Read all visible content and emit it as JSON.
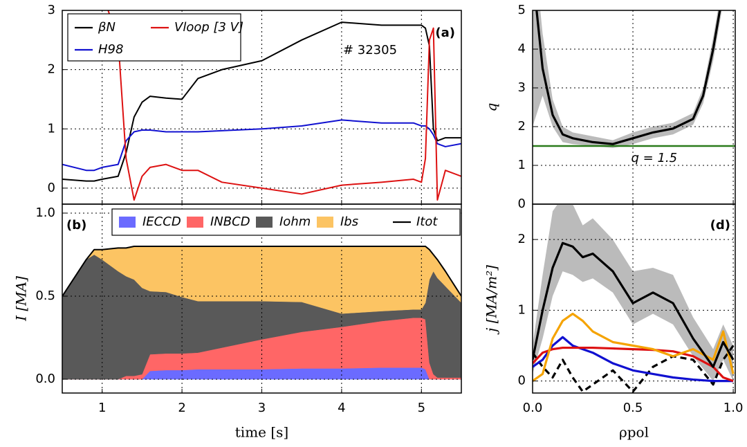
{
  "chart_data": [
    {
      "type": "line",
      "annotations": [
        "# 32305",
        "(a)"
      ],
      "x": [
        0.5,
        0.8,
        0.9,
        1.0,
        1.2,
        1.3,
        1.4,
        1.5,
        1.6,
        1.8,
        2.0,
        2.2,
        2.5,
        3.0,
        3.5,
        4.0,
        4.5,
        4.9,
        5.0,
        5.05,
        5.1,
        5.15,
        5.2,
        5.3,
        5.5
      ],
      "xlim": [
        0.5,
        5.5
      ],
      "ylim": [
        -0.27,
        3
      ],
      "xticks": [
        1,
        2,
        3,
        4,
        5
      ],
      "yticks": [
        0,
        1,
        2,
        3
      ],
      "grid": true,
      "show_xtick_labels": false,
      "series": [
        {
          "name": "βN",
          "color": "#000000",
          "values": [
            0.15,
            0.12,
            0.12,
            0.15,
            0.2,
            0.6,
            1.2,
            1.45,
            1.55,
            1.52,
            1.5,
            1.85,
            2.0,
            2.15,
            2.5,
            2.8,
            2.75,
            2.75,
            2.75,
            2.7,
            2.4,
            1.0,
            0.8,
            0.85,
            0.85
          ]
        },
        {
          "name": "H98",
          "color": "#1010d0",
          "values": [
            0.4,
            0.3,
            0.3,
            0.35,
            0.4,
            0.8,
            0.95,
            0.98,
            0.98,
            0.95,
            0.95,
            0.95,
            0.97,
            1.0,
            1.05,
            1.15,
            1.1,
            1.1,
            1.05,
            1.05,
            1.0,
            0.9,
            0.75,
            0.7,
            0.75
          ]
        },
        {
          "name": "Vloop [3 V]",
          "color": "#dd1111",
          "values": [
            3.5,
            3.5,
            3.4,
            3.3,
            2.5,
            0.5,
            -0.2,
            0.2,
            0.35,
            0.4,
            0.3,
            0.3,
            0.1,
            0.0,
            -0.1,
            0.05,
            0.1,
            0.15,
            0.1,
            0.5,
            2.5,
            2.7,
            -0.2,
            0.3,
            0.2
          ]
        }
      ]
    },
    {
      "type": "area",
      "annotations": [
        "(b)"
      ],
      "xlabel": "time [s]",
      "ylabel": "I [MA]",
      "x": [
        0.5,
        0.8,
        0.9,
        1.0,
        1.2,
        1.3,
        1.4,
        1.5,
        1.6,
        1.8,
        2.0,
        2.2,
        2.5,
        3.0,
        3.5,
        4.0,
        4.5,
        4.9,
        5.0,
        5.05,
        5.1,
        5.15,
        5.2,
        5.3,
        5.5
      ],
      "xlim": [
        0.5,
        5.5
      ],
      "ylim": [
        -0.083,
        1.054
      ],
      "xticks": [
        1,
        2,
        3,
        4,
        5
      ],
      "yticks": [
        {
          "value": 0,
          "label": "0.0"
        },
        {
          "value": 0.5,
          "label": "0.5"
        },
        {
          "value": 1,
          "label": "1.0"
        }
      ],
      "grid": true,
      "show_xtick_labels": true,
      "series": [
        {
          "name": "IECCD",
          "color": "#6b6bff",
          "stacked": true,
          "values": [
            0,
            0,
            0,
            0,
            0,
            0,
            0,
            0,
            0.05,
            0.055,
            0.055,
            0.06,
            0.06,
            0.06,
            0.065,
            0.065,
            0.07,
            0.07,
            0.07,
            0.06,
            0,
            0,
            0,
            0,
            0
          ]
        },
        {
          "name": "INBCD",
          "color": "#ff6666",
          "stacked": true,
          "values": [
            0,
            0,
            0,
            0,
            0,
            0.02,
            0.02,
            0.03,
            0.1,
            0.1,
            0.1,
            0.1,
            0.13,
            0.18,
            0.22,
            0.25,
            0.28,
            0.3,
            0.3,
            0.3,
            0.1,
            0.03,
            0.01,
            0.01,
            0.01
          ]
        },
        {
          "name": "Iohm",
          "color": "#595959",
          "stacked": true,
          "values": [
            0.5,
            0.72,
            0.75,
            0.72,
            0.65,
            0.6,
            0.58,
            0.52,
            0.38,
            0.37,
            0.34,
            0.31,
            0.28,
            0.23,
            0.18,
            0.08,
            0.06,
            0.05,
            0.05,
            0.1,
            0.5,
            0.62,
            0.6,
            0.55,
            0.45
          ]
        },
        {
          "name": "Ibs",
          "color": "#fcc463",
          "stacked": true,
          "values": [
            0,
            0,
            0.03,
            0.06,
            0.14,
            0.17,
            0.2,
            0.25,
            0.27,
            0.275,
            0.305,
            0.33,
            0.33,
            0.33,
            0.335,
            0.405,
            0.39,
            0.38,
            0.38,
            0.34,
            0.18,
            0.1,
            0.11,
            0.09,
            0.04
          ]
        },
        {
          "name": "Itot",
          "color": "#000000",
          "values": [
            0.5,
            0.72,
            0.78,
            0.78,
            0.79,
            0.79,
            0.8,
            0.8,
            0.8,
            0.8,
            0.8,
            0.8,
            0.8,
            0.8,
            0.8,
            0.8,
            0.8,
            0.8,
            0.8,
            0.8,
            0.78,
            0.75,
            0.72,
            0.65,
            0.5
          ]
        }
      ]
    },
    {
      "type": "line",
      "ylabel": "q",
      "x": [
        0,
        0.05,
        0.1,
        0.15,
        0.2,
        0.3,
        0.4,
        0.5,
        0.6,
        0.7,
        0.8,
        0.85,
        0.9,
        0.95,
        1.0
      ],
      "xlim": [
        0,
        1.01
      ],
      "ylim": [
        0,
        5
      ],
      "xticks": [
        0,
        0.5,
        1
      ],
      "yticks": [
        0,
        1,
        2,
        3,
        4,
        5
      ],
      "grid": true,
      "show_xtick_labels": false,
      "bands": [
        {
          "color": "#bbbbbb",
          "lower": [
            2.0,
            2.8,
            2.0,
            1.6,
            1.55,
            1.5,
            1.45,
            1.55,
            1.7,
            1.8,
            2.05,
            2.6,
            3.7,
            5.2,
            6.5
          ],
          "upper": [
            7,
            4.4,
            2.7,
            2.0,
            1.85,
            1.75,
            1.65,
            1.85,
            2.0,
            2.1,
            2.35,
            3.0,
            4.3,
            5.8,
            7.5
          ]
        }
      ],
      "hline": {
        "value": 1.5,
        "label": "q = 1.5",
        "color": "#2a7a1a"
      },
      "series": [
        {
          "color": "#000000",
          "values": [
            6,
            3.5,
            2.3,
            1.8,
            1.7,
            1.6,
            1.55,
            1.7,
            1.85,
            1.95,
            2.2,
            2.8,
            4,
            5.5,
            7
          ]
        }
      ]
    },
    {
      "type": "line",
      "annotations": [
        "(d)"
      ],
      "xlabel": "ρpol",
      "ylabel": "j [MA/m²]",
      "x": [
        0,
        0.05,
        0.1,
        0.15,
        0.2,
        0.25,
        0.3,
        0.4,
        0.5,
        0.6,
        0.7,
        0.8,
        0.9,
        0.95,
        1.0
      ],
      "xlim": [
        0,
        1.01
      ],
      "ylim": [
        -0.17,
        2.5
      ],
      "xticks": [
        {
          "value": 0,
          "label": "0.0"
        },
        {
          "value": 0.5,
          "label": "0.5"
        },
        {
          "value": 1,
          "label": "1.0"
        }
      ],
      "yticks": [
        0,
        1,
        2
      ],
      "grid": true,
      "show_xtick_labels": true,
      "bands": [
        {
          "color": "#bbbbbb",
          "lower": [
            0.1,
            0.6,
            1.2,
            1.55,
            1.5,
            1.4,
            1.45,
            1.25,
            0.8,
            0.95,
            0.8,
            0.35,
            0,
            0.3,
            0
          ],
          "upper": [
            0.5,
            1.5,
            2.4,
            2.6,
            2.5,
            2.2,
            2.3,
            2.0,
            1.55,
            1.6,
            1.5,
            0.9,
            0.45,
            0.8,
            0.5
          ]
        }
      ],
      "series": [
        {
          "color": "#000000",
          "dash": true,
          "values": [
            0.4,
            0.2,
            0.05,
            0.3,
            0.05,
            -0.15,
            -0.05,
            0.15,
            -0.15,
            0.2,
            0.35,
            0.3,
            -0.05,
            0.3,
            0.5
          ]
        },
        {
          "color": "#1010d0",
          "values": [
            0.2,
            0.3,
            0.5,
            0.62,
            0.5,
            0.45,
            0.4,
            0.25,
            0.15,
            0.1,
            0.05,
            0.02,
            0,
            0,
            0
          ]
        },
        {
          "color": "#dd1111",
          "values": [
            0.25,
            0.4,
            0.45,
            0.47,
            0.47,
            0.47,
            0.47,
            0.46,
            0.45,
            0.44,
            0.42,
            0.35,
            0.2,
            0.05,
            0
          ]
        },
        {
          "color": "#f5a300",
          "values": [
            0,
            0.1,
            0.6,
            0.85,
            0.95,
            0.85,
            0.7,
            0.55,
            0.5,
            0.45,
            0.35,
            0.45,
            0.3,
            0.7,
            0.1
          ]
        },
        {
          "color": "#000000",
          "values": [
            0.3,
            1.0,
            1.6,
            1.95,
            1.9,
            1.75,
            1.8,
            1.55,
            1.1,
            1.25,
            1.1,
            0.6,
            0.2,
            0.55,
            0.3
          ]
        }
      ]
    }
  ]
}
